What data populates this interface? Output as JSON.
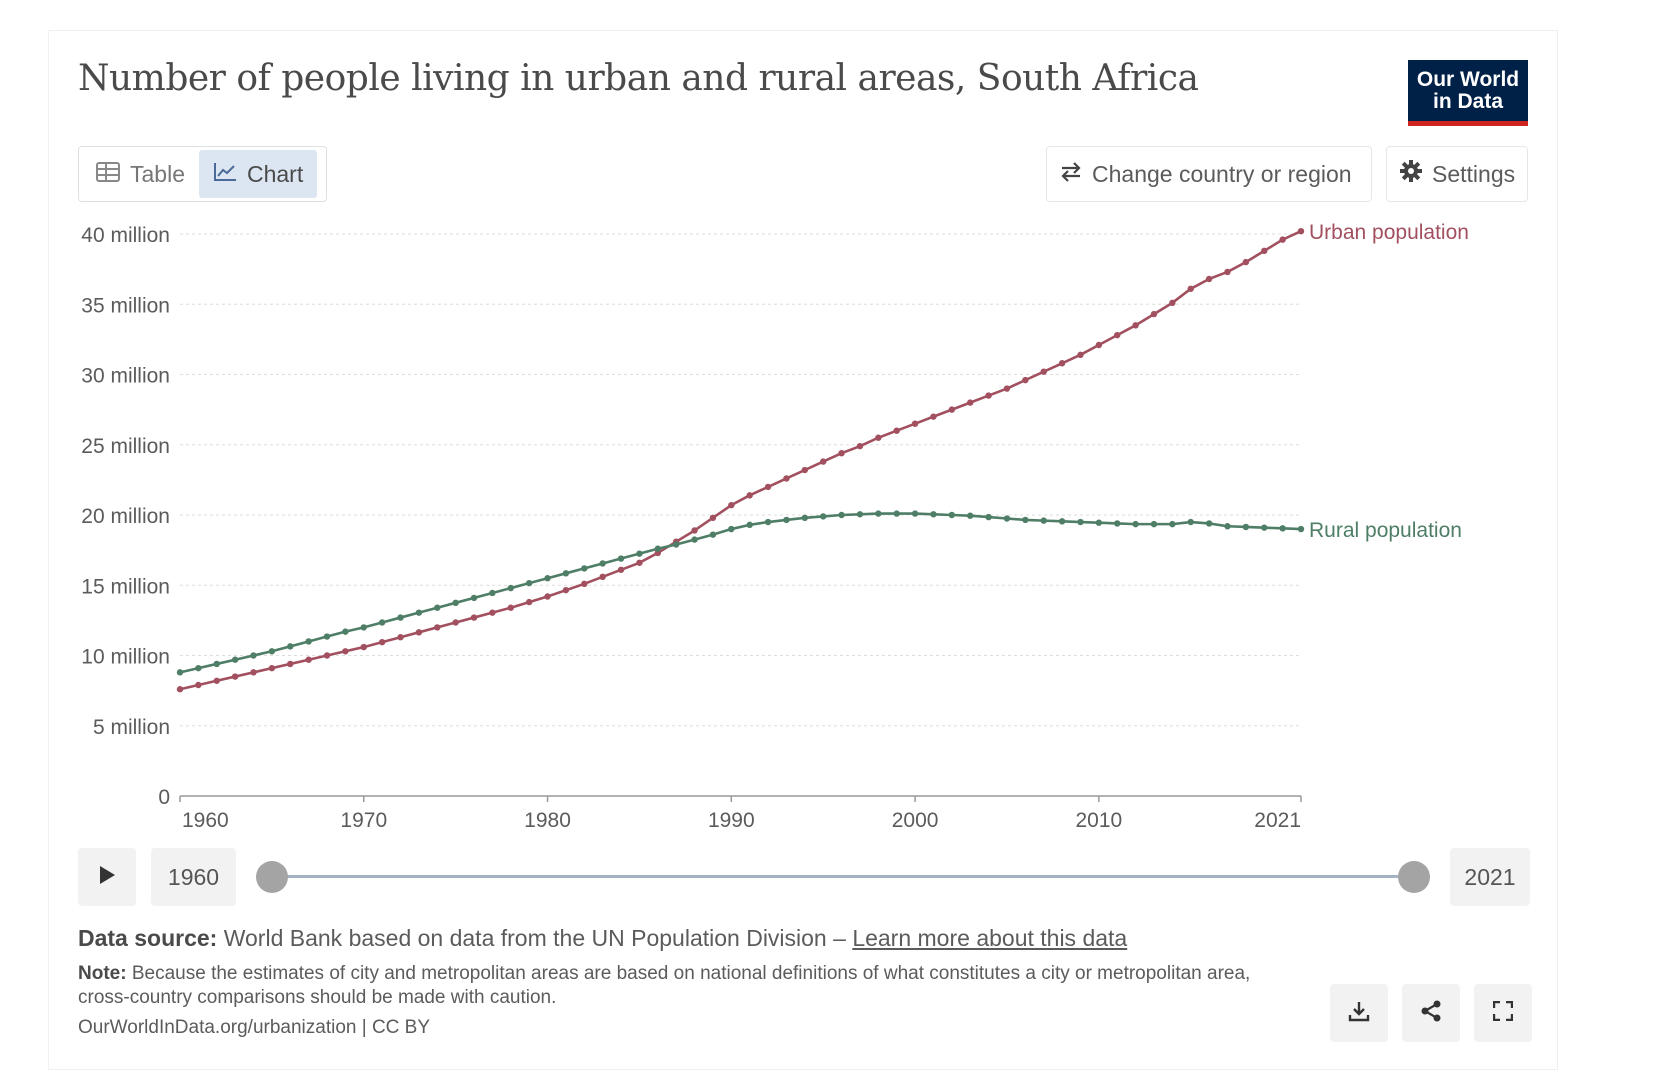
{
  "header": {
    "title": "Number of people living in urban and rural areas, South Africa",
    "logo_line1": "Our World",
    "logo_line2": "in Data"
  },
  "tabs": [
    {
      "label": "Table",
      "icon": "table-icon",
      "active": false
    },
    {
      "label": "Chart",
      "icon": "line-chart-icon",
      "active": true
    }
  ],
  "controls": {
    "change_label": "Change country or region",
    "settings_label": "Settings"
  },
  "timeline": {
    "start_label": "1960",
    "end_label": "2021"
  },
  "footer": {
    "source_bold": "Data source:",
    "source_text": "World Bank based on data from the UN Population Division – ",
    "source_link": "Learn more about this data",
    "note_bold": "Note:",
    "note_text": "Because the estimates of city and metropolitan areas are based on national definitions of what constitutes a city or metropolitan area, cross-country comparisons should be made with caution.",
    "url_text": "OurWorldInData.org/urbanization | CC BY"
  },
  "colors": {
    "urban": "#a2505f",
    "rural": "#4f7e66",
    "grid": "#dddddd",
    "axis_text": "#5b5b5b",
    "logo_bg": "#002147",
    "logo_accent": "#ce261e"
  },
  "chart_data": {
    "type": "line",
    "title": "Number of people living in urban and rural areas, South Africa",
    "x": [
      1960,
      1961,
      1962,
      1963,
      1964,
      1965,
      1966,
      1967,
      1968,
      1969,
      1970,
      1971,
      1972,
      1973,
      1974,
      1975,
      1976,
      1977,
      1978,
      1979,
      1980,
      1981,
      1982,
      1983,
      1984,
      1985,
      1986,
      1987,
      1988,
      1989,
      1990,
      1991,
      1992,
      1993,
      1994,
      1995,
      1996,
      1997,
      1998,
      1999,
      2000,
      2001,
      2002,
      2003,
      2004,
      2005,
      2006,
      2007,
      2008,
      2009,
      2010,
      2011,
      2012,
      2013,
      2014,
      2015,
      2016,
      2017,
      2018,
      2019,
      2020,
      2021
    ],
    "xlim": [
      1960,
      2021
    ],
    "x_ticks": [
      "1960",
      "1970",
      "1980",
      "1990",
      "2000",
      "2010",
      "2021"
    ],
    "ylim": [
      0,
      40000000
    ],
    "y_ticks": [
      "0",
      "5 million",
      "10 million",
      "15 million",
      "20 million",
      "25 million",
      "30 million",
      "35 million",
      "40 million"
    ],
    "series": [
      {
        "name": "Urban population",
        "values": [
          7600000,
          7900000,
          8200000,
          8500000,
          8800000,
          9100000,
          9400000,
          9700000,
          10000000,
          10300000,
          10600000,
          10950000,
          11300000,
          11650000,
          12000000,
          12350000,
          12700000,
          13050000,
          13400000,
          13800000,
          14200000,
          14650000,
          15100000,
          15600000,
          16100000,
          16600000,
          17300000,
          18100000,
          18900000,
          19800000,
          20700000,
          21400000,
          22000000,
          22600000,
          23200000,
          23800000,
          24400000,
          24900000,
          25500000,
          26000000,
          26500000,
          27000000,
          27500000,
          28000000,
          28500000,
          29000000,
          29600000,
          30200000,
          30800000,
          31400000,
          32100000,
          32800000,
          33500000,
          34300000,
          35100000,
          36100000,
          36800000,
          37300000,
          38000000,
          38800000,
          39600000,
          40200000
        ]
      },
      {
        "name": "Rural population",
        "values": [
          8800000,
          9100000,
          9400000,
          9700000,
          10000000,
          10300000,
          10650000,
          11000000,
          11350000,
          11700000,
          12000000,
          12350000,
          12700000,
          13050000,
          13400000,
          13750000,
          14100000,
          14450000,
          14800000,
          15150000,
          15500000,
          15850000,
          16200000,
          16550000,
          16900000,
          17250000,
          17600000,
          17900000,
          18250000,
          18600000,
          19000000,
          19300000,
          19500000,
          19650000,
          19800000,
          19900000,
          20000000,
          20050000,
          20100000,
          20100000,
          20100000,
          20050000,
          20000000,
          19950000,
          19850000,
          19750000,
          19650000,
          19600000,
          19550000,
          19500000,
          19450000,
          19400000,
          19350000,
          19350000,
          19350000,
          19500000,
          19400000,
          19200000,
          19150000,
          19100000,
          19050000,
          19000000
        ]
      }
    ]
  }
}
